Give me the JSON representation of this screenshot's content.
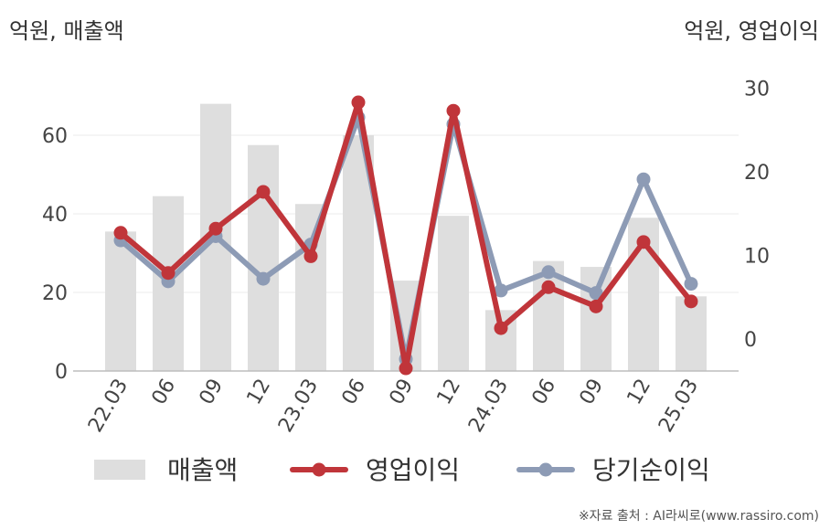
{
  "left_unit": "억원, 매출액",
  "right_unit": "억원, 영업이익",
  "source": "※자료 출처 : AI라씨로(www.rassiro.com)",
  "colors": {
    "revenue": "#dedede",
    "operating_profit": "#c0353a",
    "net_income": "#8d9bb5"
  },
  "chart_data": {
    "type": "bar",
    "categories": [
      "22.03",
      "06",
      "09",
      "12",
      "23.03",
      "06",
      "09",
      "12",
      "24.03",
      "06",
      "09",
      "12",
      "25.03"
    ],
    "y_left_ticks": [
      "0",
      "20",
      "40",
      "60"
    ],
    "y_right_ticks": [
      "0",
      "10",
      "20",
      "30"
    ],
    "y_left_range": [
      0,
      70
    ],
    "y_right_range": [
      -3.8,
      30
    ],
    "legend_position": "bottom",
    "series": [
      {
        "name": "매출액",
        "axis": "left",
        "type": "bar",
        "values": [
          35.5,
          44.5,
          68,
          57.5,
          42.5,
          60,
          23,
          39.5,
          15.5,
          28,
          26.5,
          39,
          19
        ]
      },
      {
        "name": "영업이익",
        "axis": "right",
        "type": "line",
        "values": [
          12.7,
          7.9,
          13.2,
          17.6,
          9.9,
          28.3,
          -3.5,
          27.3,
          1.3,
          6.2,
          3.9,
          11.6,
          4.5
        ]
      },
      {
        "name": "당기순이익",
        "axis": "right",
        "type": "line",
        "values": [
          11.8,
          6.9,
          12.3,
          7.2,
          11.3,
          26.5,
          -2.4,
          25.7,
          5.8,
          8.0,
          5.5,
          19.1,
          6.6
        ]
      }
    ]
  }
}
